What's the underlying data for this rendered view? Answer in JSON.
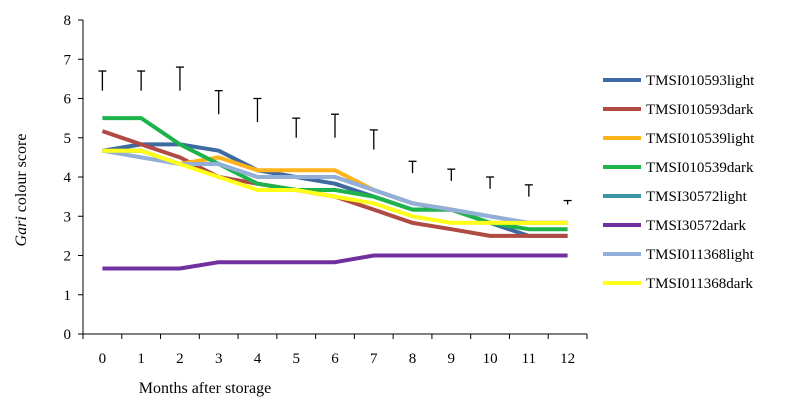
{
  "chart_data": {
    "type": "line",
    "xlabel": "Months after storage",
    "ylabel_prefix": "Gari",
    "ylabel_suffix": " colour score",
    "x": [
      0,
      1,
      2,
      3,
      4,
      5,
      6,
      7,
      8,
      9,
      10,
      11,
      12
    ],
    "ylim": [
      0,
      8
    ],
    "yticks": [
      0,
      1,
      2,
      3,
      4,
      5,
      6,
      7,
      8
    ],
    "grid": false,
    "legend_position": "right",
    "series": [
      {
        "name": "TMSI010593light",
        "color": "#3d6aa0",
        "values": [
          4.67,
          4.83,
          4.83,
          4.67,
          4.17,
          4.0,
          3.83,
          3.5,
          3.17,
          3.17,
          2.83,
          2.5,
          2.5
        ]
      },
      {
        "name": "TMSI010593dark",
        "color": "#b04b43",
        "values": [
          5.17,
          4.83,
          4.5,
          4.0,
          3.83,
          3.67,
          3.5,
          3.17,
          2.83,
          2.67,
          2.5,
          2.5,
          2.5
        ]
      },
      {
        "name": "TMSI010539light",
        "color": "#ffb31a",
        "values": [
          4.67,
          4.67,
          4.33,
          4.5,
          4.17,
          4.17,
          4.17,
          3.67,
          3.33,
          3.17,
          2.83,
          2.83,
          2.83
        ]
      },
      {
        "name": "TMSI010539dark",
        "color": "#1eb24b",
        "values": [
          5.5,
          5.5,
          4.83,
          4.33,
          3.83,
          3.67,
          3.67,
          3.5,
          3.17,
          3.17,
          2.83,
          2.67,
          2.67
        ]
      },
      {
        "name": "TMSI30572light",
        "color": "#3c97a2",
        "values": [
          4.67,
          4.67,
          4.33,
          4.33,
          4.0,
          4.0,
          4.0,
          3.67,
          3.33,
          3.17,
          3.0,
          2.83,
          2.83
        ]
      },
      {
        "name": "TMSI30572dark",
        "color": "#7030a0",
        "values": [
          1.67,
          1.67,
          1.67,
          1.83,
          1.83,
          1.83,
          1.83,
          2.0,
          2.0,
          2.0,
          2.0,
          2.0,
          2.0
        ]
      },
      {
        "name": "TMSI011368light",
        "color": "#93afd8",
        "values": [
          4.67,
          4.5,
          4.33,
          4.33,
          4.0,
          4.0,
          4.0,
          3.67,
          3.33,
          3.17,
          3.0,
          2.83,
          2.83
        ]
      },
      {
        "name": "TMSI011368dark",
        "color": "#ffff19",
        "values": [
          4.67,
          4.67,
          4.33,
          4.0,
          3.67,
          3.67,
          3.5,
          3.33,
          3.0,
          2.83,
          2.83,
          2.83,
          2.83
        ]
      }
    ],
    "error_bars": {
      "color": "#000000",
      "center": [
        6.2,
        6.2,
        6.2,
        5.6,
        5.4,
        5.0,
        5.0,
        4.7,
        4.1,
        3.9,
        3.7,
        3.5,
        3.3
      ],
      "upper": [
        6.7,
        6.7,
        6.8,
        6.2,
        6.0,
        5.5,
        5.6,
        5.2,
        4.4,
        4.2,
        4.0,
        3.8,
        3.4
      ]
    }
  }
}
